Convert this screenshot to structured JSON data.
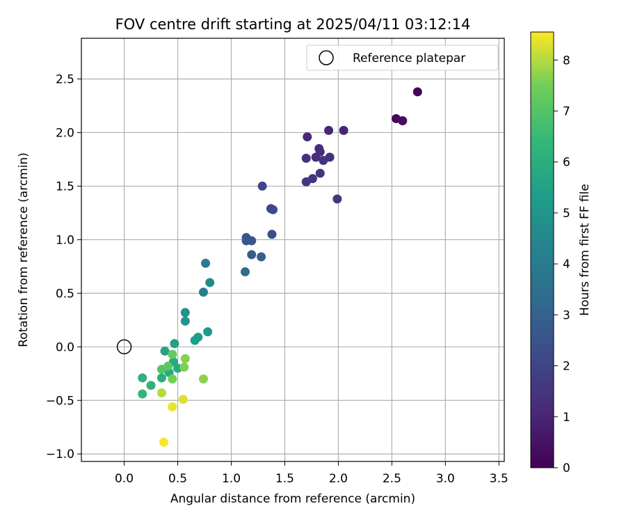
{
  "chart_data": {
    "type": "scatter",
    "title": "FOV centre drift starting at 2025/04/11 03:12:14",
    "xlabel": "Angular distance from reference (arcmin)",
    "ylabel": "Rotation from reference (arcmin)",
    "xlim": [
      -0.4,
      3.55
    ],
    "ylim": [
      -1.07,
      2.88
    ],
    "xticks": [
      0.0,
      0.5,
      1.0,
      1.5,
      2.0,
      2.5,
      3.0,
      3.5
    ],
    "xtick_labels": [
      "0.0",
      "0.5",
      "1.0",
      "1.5",
      "2.0",
      "2.5",
      "3.0",
      "3.5"
    ],
    "yticks": [
      -1.0,
      -0.5,
      0.0,
      0.5,
      1.0,
      1.5,
      2.0,
      2.5
    ],
    "ytick_labels": [
      "−1.0",
      "−0.5",
      "0.0",
      "0.5",
      "1.0",
      "1.5",
      "2.0",
      "2.5"
    ],
    "grid": true,
    "legend": {
      "position": "top-right",
      "entries": [
        "Reference platepar"
      ]
    },
    "reference_point": {
      "label": "Reference platepar",
      "x": 0.0,
      "y": 0.0,
      "marker": "hollow-circle"
    },
    "colorbar": {
      "label": "Hours from first FF file",
      "colormap": "viridis",
      "range": [
        0,
        8.55
      ],
      "ticks": [
        0,
        1,
        2,
        3,
        4,
        5,
        6,
        7,
        8
      ],
      "tick_labels": [
        "0",
        "1",
        "2",
        "3",
        "4",
        "5",
        "6",
        "7",
        "8"
      ]
    },
    "points": [
      {
        "x": 2.74,
        "y": 2.38,
        "hours": 0.05
      },
      {
        "x": 2.54,
        "y": 2.13,
        "hours": 0.2
      },
      {
        "x": 2.6,
        "y": 2.11,
        "hours": 0.3
      },
      {
        "x": 2.05,
        "y": 2.02,
        "hours": 1.0
      },
      {
        "x": 1.91,
        "y": 2.02,
        "hours": 1.05
      },
      {
        "x": 1.71,
        "y": 1.96,
        "hours": 1.1
      },
      {
        "x": 1.82,
        "y": 1.85,
        "hours": 1.15
      },
      {
        "x": 1.83,
        "y": 1.82,
        "hours": 1.2
      },
      {
        "x": 1.79,
        "y": 1.77,
        "hours": 1.25
      },
      {
        "x": 1.7,
        "y": 1.76,
        "hours": 1.3
      },
      {
        "x": 1.92,
        "y": 1.77,
        "hours": 1.35
      },
      {
        "x": 1.86,
        "y": 1.74,
        "hours": 1.4
      },
      {
        "x": 1.83,
        "y": 1.62,
        "hours": 1.45
      },
      {
        "x": 1.76,
        "y": 1.57,
        "hours": 1.5
      },
      {
        "x": 1.7,
        "y": 1.54,
        "hours": 1.55
      },
      {
        "x": 1.99,
        "y": 1.38,
        "hours": 1.6
      },
      {
        "x": 1.29,
        "y": 1.5,
        "hours": 2.0
      },
      {
        "x": 1.37,
        "y": 1.29,
        "hours": 2.05
      },
      {
        "x": 1.39,
        "y": 1.28,
        "hours": 2.15
      },
      {
        "x": 1.38,
        "y": 1.05,
        "hours": 2.3
      },
      {
        "x": 1.14,
        "y": 1.02,
        "hours": 2.5
      },
      {
        "x": 1.14,
        "y": 0.99,
        "hours": 2.55
      },
      {
        "x": 1.19,
        "y": 0.99,
        "hours": 2.6
      },
      {
        "x": 1.19,
        "y": 0.86,
        "hours": 2.8
      },
      {
        "x": 1.28,
        "y": 0.84,
        "hours": 2.9
      },
      {
        "x": 1.13,
        "y": 0.7,
        "hours": 3.4
      },
      {
        "x": 0.76,
        "y": 0.78,
        "hours": 3.9
      },
      {
        "x": 0.74,
        "y": 0.51,
        "hours": 4.1
      },
      {
        "x": 0.8,
        "y": 0.6,
        "hours": 4.6
      },
      {
        "x": 0.57,
        "y": 0.32,
        "hours": 4.9
      },
      {
        "x": 0.57,
        "y": 0.24,
        "hours": 5.0
      },
      {
        "x": 0.78,
        "y": 0.14,
        "hours": 5.15
      },
      {
        "x": 0.69,
        "y": 0.09,
        "hours": 5.25
      },
      {
        "x": 0.66,
        "y": 0.06,
        "hours": 5.35
      },
      {
        "x": 0.47,
        "y": 0.03,
        "hours": 5.45
      },
      {
        "x": 0.38,
        "y": -0.04,
        "hours": 5.6
      },
      {
        "x": 0.46,
        "y": -0.14,
        "hours": 5.75
      },
      {
        "x": 0.5,
        "y": -0.2,
        "hours": 5.8
      },
      {
        "x": 0.42,
        "y": -0.24,
        "hours": 5.9
      },
      {
        "x": 0.35,
        "y": -0.29,
        "hours": 6.0
      },
      {
        "x": 0.17,
        "y": -0.29,
        "hours": 6.1
      },
      {
        "x": 0.25,
        "y": -0.36,
        "hours": 6.2
      },
      {
        "x": 0.17,
        "y": -0.44,
        "hours": 6.3
      },
      {
        "x": 0.35,
        "y": -0.21,
        "hours": 7.0
      },
      {
        "x": 0.41,
        "y": -0.18,
        "hours": 7.1
      },
      {
        "x": 0.45,
        "y": -0.07,
        "hours": 7.3
      },
      {
        "x": 0.45,
        "y": -0.3,
        "hours": 7.5
      },
      {
        "x": 0.56,
        "y": -0.19,
        "hours": 7.6
      },
      {
        "x": 0.57,
        "y": -0.11,
        "hours": 7.65
      },
      {
        "x": 0.74,
        "y": -0.3,
        "hours": 7.7
      },
      {
        "x": 0.35,
        "y": -0.43,
        "hours": 8.0
      },
      {
        "x": 0.55,
        "y": -0.49,
        "hours": 8.3
      },
      {
        "x": 0.45,
        "y": -0.56,
        "hours": 8.4
      },
      {
        "x": 0.37,
        "y": -0.89,
        "hours": 8.5
      }
    ]
  }
}
